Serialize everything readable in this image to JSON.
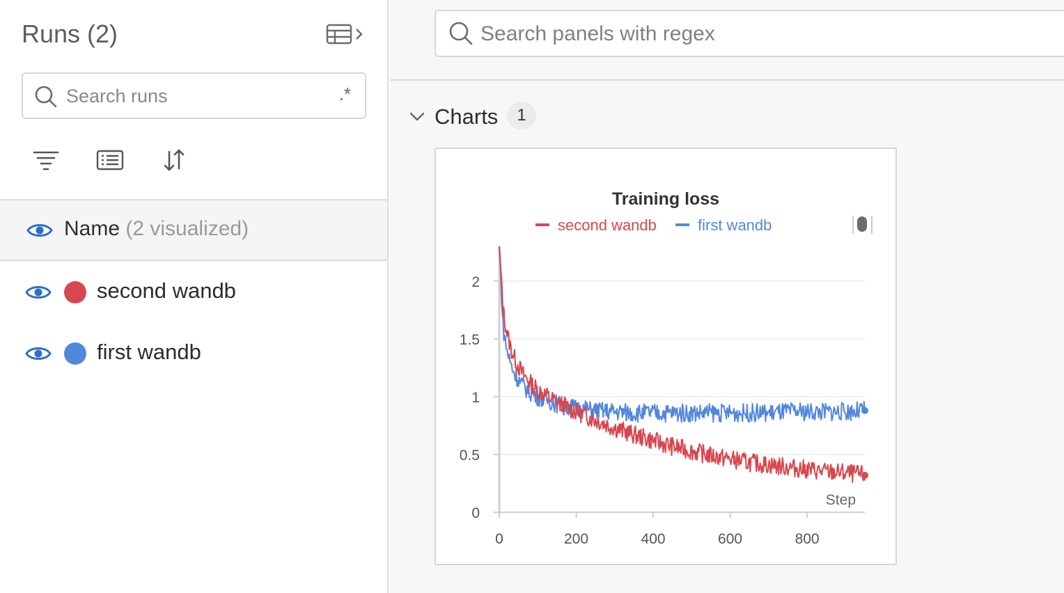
{
  "runs_panel": {
    "title": "Runs (2)",
    "search": {
      "placeholder": "Search runs",
      "regex_label": ".*"
    },
    "toolbar": {
      "filter_icon": "filter-icon",
      "group_icon": "group-icon",
      "sort_icon": "sort-icon"
    },
    "header": {
      "name": "Name",
      "visualized": "(2 visualized)"
    },
    "runs": [
      {
        "name": "second wandb",
        "color": "#d9474e"
      },
      {
        "name": "first wandb",
        "color": "#5387dd"
      }
    ]
  },
  "workspace": {
    "search": {
      "placeholder": "Search panels with regex"
    },
    "section": {
      "title": "Charts",
      "count": "1"
    }
  },
  "chart_data": {
    "type": "line",
    "title": "Training loss",
    "xlabel": "Step",
    "ylabel": "",
    "xlim": [
      0,
      950
    ],
    "ylim": [
      0,
      2.3
    ],
    "x_ticks": [
      "0",
      "200",
      "400",
      "600",
      "800"
    ],
    "y_ticks": [
      "0",
      "0.5",
      "1",
      "1.5",
      "2"
    ],
    "legend_position": "top",
    "grid": true,
    "series": [
      {
        "name": "second wandb",
        "color": "#d9474e",
        "x": [
          0,
          10,
          20,
          30,
          40,
          60,
          80,
          100,
          150,
          200,
          250,
          300,
          350,
          400,
          450,
          500,
          550,
          600,
          650,
          700,
          750,
          800,
          850,
          900,
          950
        ],
        "values": [
          2.3,
          1.75,
          1.55,
          1.42,
          1.33,
          1.2,
          1.12,
          1.06,
          0.95,
          0.87,
          0.8,
          0.73,
          0.67,
          0.62,
          0.57,
          0.53,
          0.49,
          0.46,
          0.43,
          0.41,
          0.39,
          0.37,
          0.35,
          0.34,
          0.32
        ]
      },
      {
        "name": "first wandb",
        "color": "#5387dd",
        "x": [
          0,
          10,
          20,
          30,
          40,
          60,
          80,
          100,
          150,
          200,
          250,
          300,
          350,
          400,
          450,
          500,
          550,
          600,
          650,
          700,
          750,
          800,
          850,
          900,
          950
        ],
        "values": [
          2.3,
          1.6,
          1.4,
          1.28,
          1.2,
          1.1,
          1.04,
          1.0,
          0.94,
          0.9,
          0.88,
          0.87,
          0.86,
          0.86,
          0.86,
          0.86,
          0.86,
          0.86,
          0.86,
          0.86,
          0.87,
          0.87,
          0.87,
          0.87,
          0.88
        ]
      }
    ]
  }
}
